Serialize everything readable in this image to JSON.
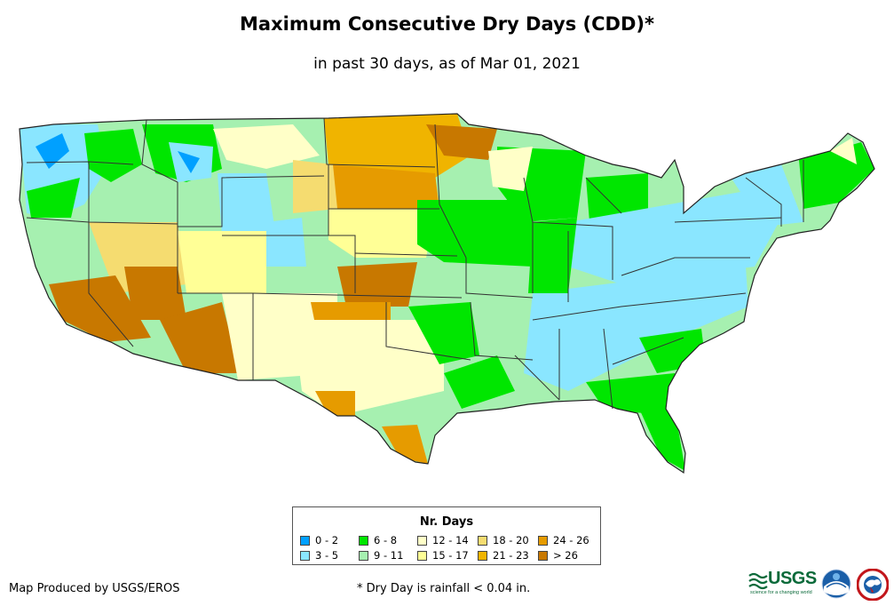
{
  "title": "Maximum Consecutive Dry Days (CDD)*",
  "subtitle": "in past 30 days, as of Mar 01, 2021",
  "legend": {
    "title": "Nr. Days",
    "items": [
      {
        "label": "0 - 2",
        "color": "#00a0ff"
      },
      {
        "label": "3 - 5",
        "color": "#8ae6ff"
      },
      {
        "label": "6 - 8",
        "color": "#00e600"
      },
      {
        "label": "9 - 11",
        "color": "#a6f0b0"
      },
      {
        "label": "12 - 14",
        "color": "#ffffc8"
      },
      {
        "label": "15 - 17",
        "color": "#ffff96"
      },
      {
        "label": "18 - 20",
        "color": "#f5dc70"
      },
      {
        "label": "21 - 23",
        "color": "#f0b400"
      },
      {
        "label": "24 - 26",
        "color": "#e69b00"
      },
      {
        "label": "> 26",
        "color": "#c87800"
      }
    ]
  },
  "credit": "Map Produced by USGS/EROS",
  "footnote": "* Dry Day is rainfall < 0.04 in.",
  "logos": {
    "usgs": "USGS",
    "usgs_tagline": "science for a changing world",
    "noaa": "noaa",
    "nws": "NATIONAL WEATHER SERVICE"
  },
  "colors": {
    "state_border": "#333333",
    "map_outline": "#222222"
  }
}
